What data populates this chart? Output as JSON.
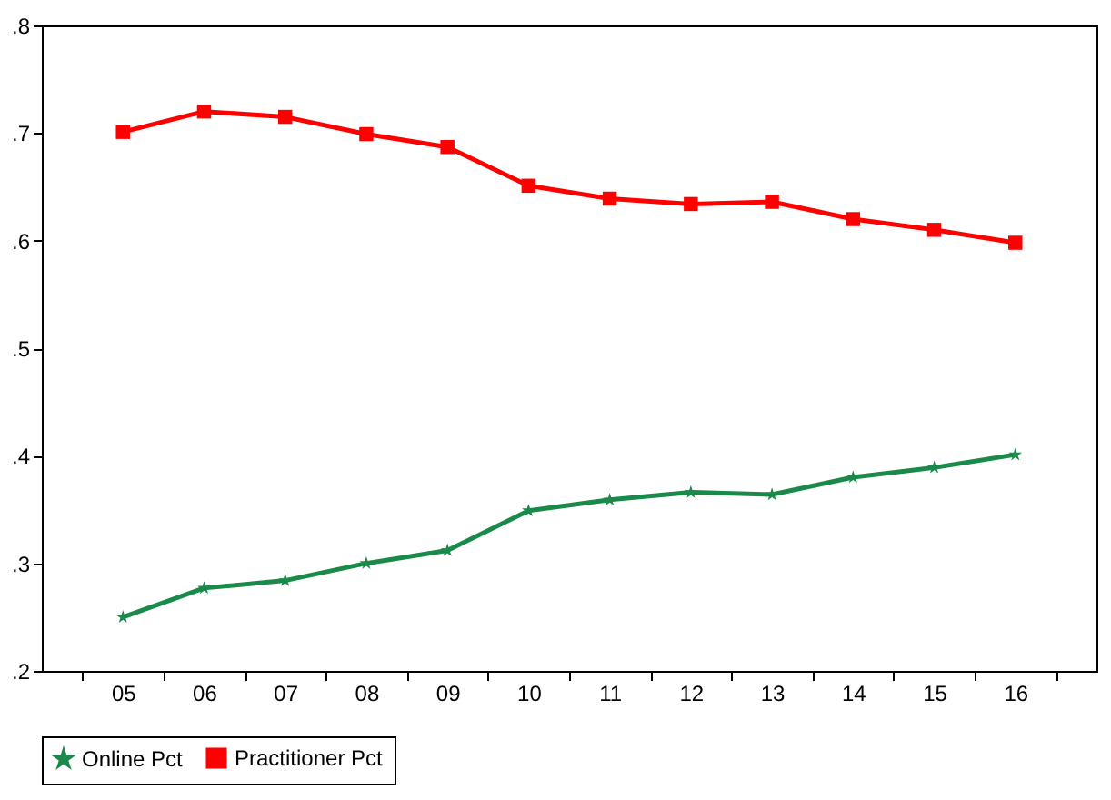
{
  "chart_data": {
    "type": "line",
    "categories": [
      "05",
      "06",
      "07",
      "08",
      "09",
      "10",
      "11",
      "12",
      "13",
      "14",
      "15",
      "16"
    ],
    "series": [
      {
        "name": "Online Pct",
        "color": "#1a8a4a",
        "marker": "star",
        "values": [
          0.25,
          0.277,
          0.284,
          0.3,
          0.312,
          0.349,
          0.359,
          0.366,
          0.364,
          0.38,
          0.389,
          0.401
        ]
      },
      {
        "name": "Practitioner Pct",
        "color": "#ff0000",
        "marker": "square",
        "values": [
          0.701,
          0.72,
          0.715,
          0.699,
          0.687,
          0.651,
          0.639,
          0.634,
          0.636,
          0.62,
          0.61,
          0.598
        ]
      }
    ],
    "ylim": [
      0.2,
      0.8
    ],
    "yticks": [
      {
        "value": 0.2,
        "label": ".2"
      },
      {
        "value": 0.3,
        "label": ".3"
      },
      {
        "value": 0.4,
        "label": ".4"
      },
      {
        "value": 0.5,
        "label": ".5"
      },
      {
        "value": 0.6,
        "label": ".6"
      },
      {
        "value": 0.7,
        "label": ".7"
      },
      {
        "value": 0.8,
        "label": ".8"
      }
    ],
    "grid": false,
    "legend": "bottom",
    "line_style": "solid"
  }
}
